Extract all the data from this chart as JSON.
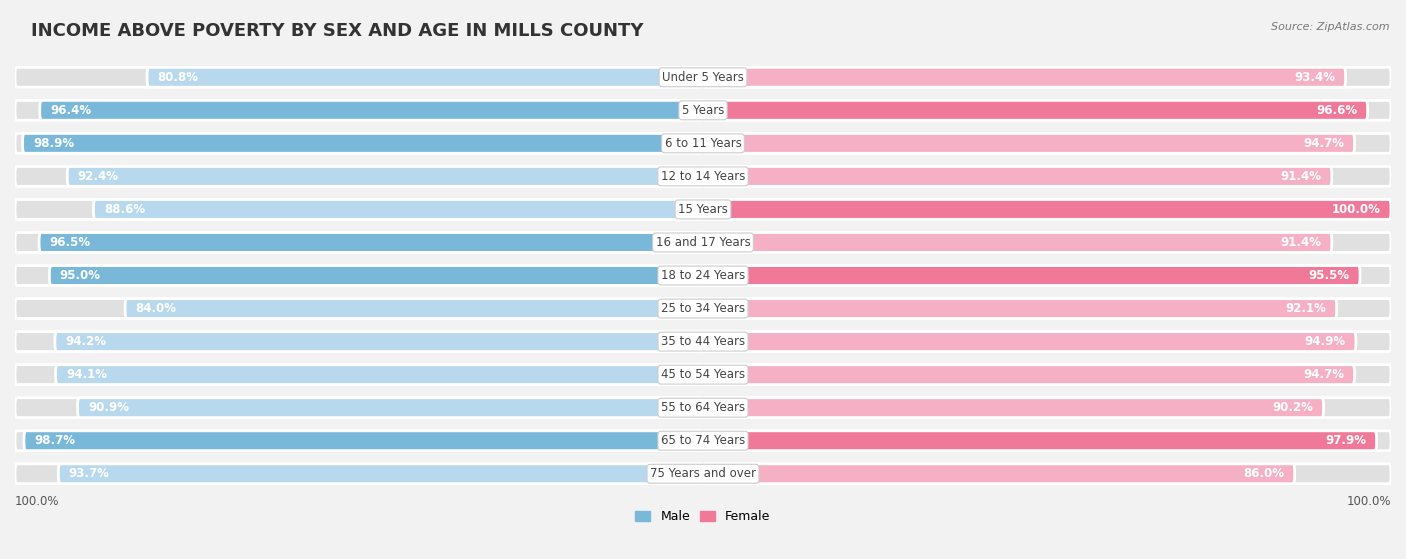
{
  "title": "INCOME ABOVE POVERTY BY SEX AND AGE IN MILLS COUNTY",
  "source": "Source: ZipAtlas.com",
  "categories": [
    "Under 5 Years",
    "5 Years",
    "6 to 11 Years",
    "12 to 14 Years",
    "15 Years",
    "16 and 17 Years",
    "18 to 24 Years",
    "25 to 34 Years",
    "35 to 44 Years",
    "45 to 54 Years",
    "55 to 64 Years",
    "65 to 74 Years",
    "75 Years and over"
  ],
  "male_values": [
    80.8,
    96.4,
    98.9,
    92.4,
    88.6,
    96.5,
    95.0,
    84.0,
    94.2,
    94.1,
    90.9,
    98.7,
    93.7
  ],
  "female_values": [
    93.4,
    96.6,
    94.7,
    91.4,
    100.0,
    91.4,
    95.5,
    92.1,
    94.9,
    94.7,
    90.2,
    97.9,
    86.0
  ],
  "male_color": "#7ab8da",
  "male_color_light": "#b8d8ed",
  "female_color": "#f07898",
  "female_color_light": "#f5b0c5",
  "bg_color": "#f2f2f2",
  "title_fontsize": 13,
  "label_fontsize": 8.5,
  "value_fontsize": 8.5,
  "legend_male": "Male",
  "legend_female": "Female"
}
